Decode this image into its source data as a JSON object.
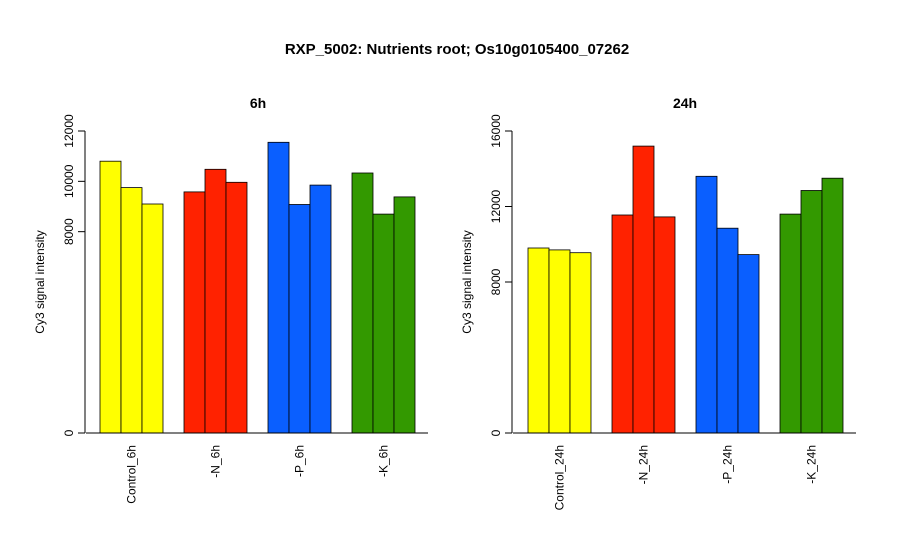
{
  "title": "RXP_5002: Nutrients root; Os10g0105400_07262",
  "colors": {
    "control": "#ffff00",
    "minus_n": "#ff2200",
    "minus_p": "#0a5fff",
    "minus_k": "#339900",
    "bar_stroke": "#000000",
    "background": "#ffffff"
  },
  "chart_data": [
    {
      "type": "bar",
      "title": "6h",
      "ylabel": "Cy3 signal intensity",
      "xlabel": "",
      "ylim": [
        0,
        12000
      ],
      "yticks": [
        0,
        8000,
        10000,
        12000
      ],
      "grid": false,
      "legend": "none",
      "categories": [
        "Control_6h",
        "-N_6h",
        "-P_6h",
        "-K_6h"
      ],
      "category_colors": [
        "#ffff00",
        "#ff2200",
        "#0a5fff",
        "#339900"
      ],
      "series": [
        {
          "values": [
            10800,
            9580,
            11550,
            10330
          ]
        },
        {
          "values": [
            9750,
            10480,
            9080,
            8700
          ]
        },
        {
          "values": [
            9100,
            9960,
            9850,
            9380
          ]
        }
      ]
    },
    {
      "type": "bar",
      "title": "24h",
      "ylabel": "Cy3 signal intensity",
      "xlabel": "",
      "ylim": [
        0,
        16000
      ],
      "yticks": [
        0,
        8000,
        12000,
        16000
      ],
      "grid": false,
      "legend": "none",
      "categories": [
        "Control_24h",
        "-N_24h",
        "-P_24h",
        "-K_24h"
      ],
      "category_colors": [
        "#ffff00",
        "#ff2200",
        "#0a5fff",
        "#339900"
      ],
      "series": [
        {
          "values": [
            9800,
            11550,
            13600,
            11600
          ]
        },
        {
          "values": [
            9700,
            15200,
            10850,
            12850
          ]
        },
        {
          "values": [
            9550,
            11450,
            9450,
            13500
          ]
        }
      ]
    }
  ]
}
